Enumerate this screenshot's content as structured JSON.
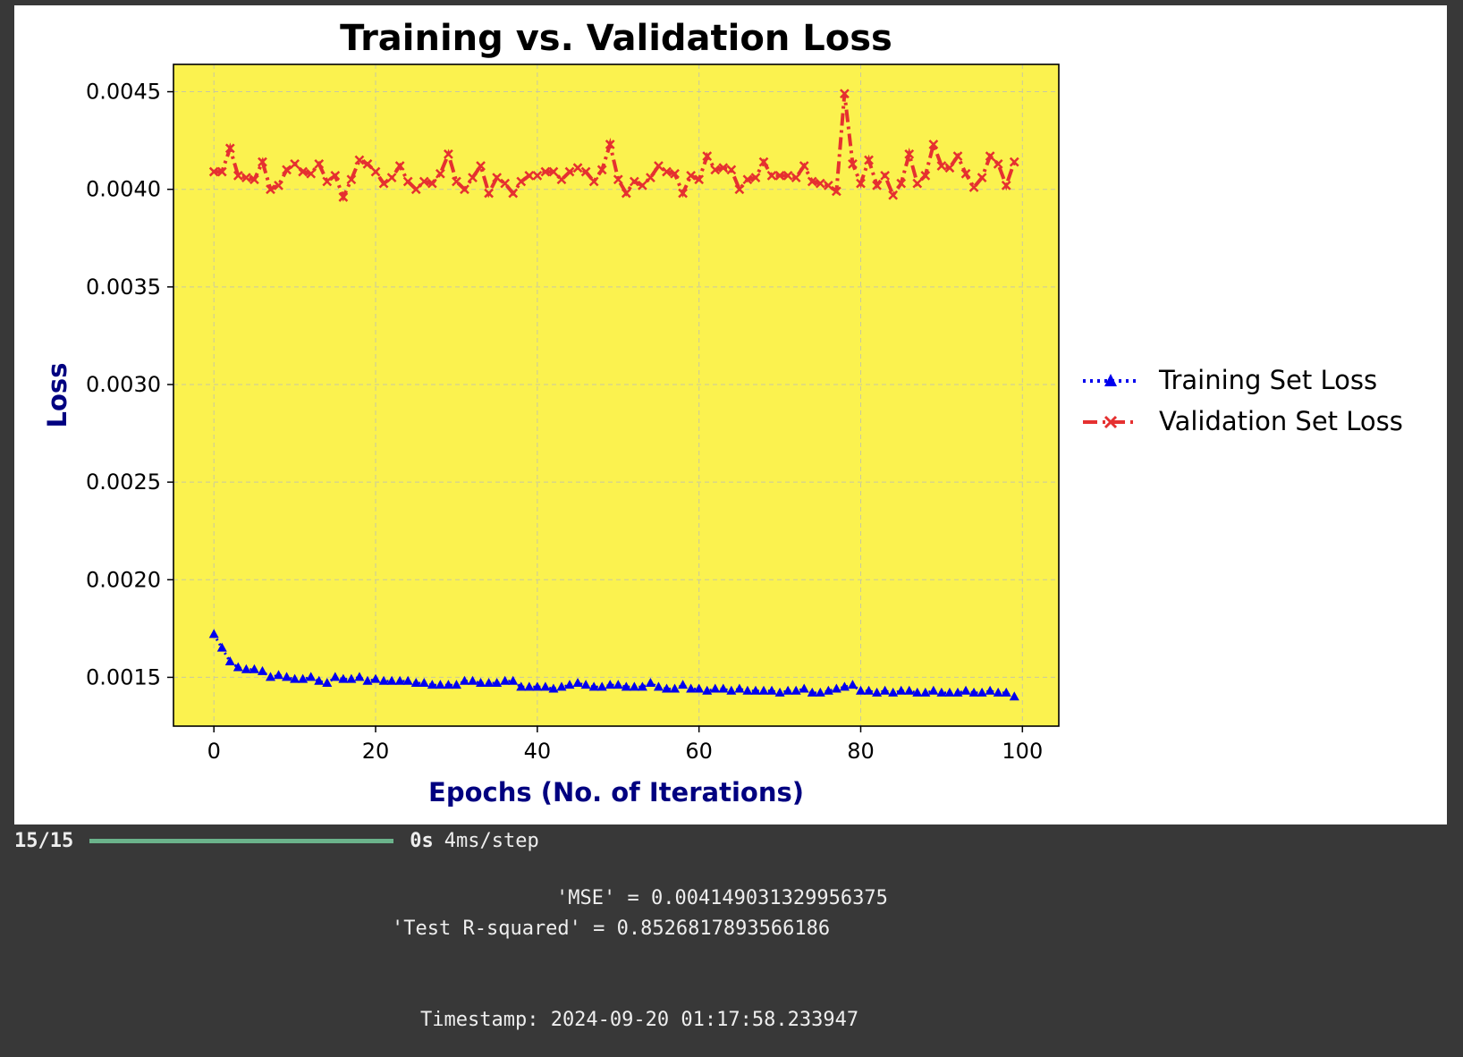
{
  "progress": {
    "count": "15/15",
    "time": "0s",
    "rate": "4ms/step"
  },
  "metrics": {
    "mse": "'MSE' = 0.004149031329956375",
    "r2": "'Test R-squared' = 0.8526817893566186",
    "timestamp": "Timestamp: 2024-09-20 01:17:58.233947"
  },
  "colors": {
    "background": "#383838",
    "plot_area": "#fbf24f",
    "training": "#0000ee",
    "validation": "#e53030",
    "axis_label": "#000080",
    "progress_bar": "#6bb38b"
  },
  "chart_data": {
    "type": "line",
    "title": "Training vs. Validation Loss",
    "xlabel": "Epochs (No. of Iterations)",
    "ylabel": "Loss",
    "xlim": [
      -5,
      104.5
    ],
    "ylim": [
      0.00125,
      0.00464
    ],
    "xticks": [
      0,
      20,
      40,
      60,
      80,
      100
    ],
    "xtick_labels": [
      "0",
      "20",
      "40",
      "60",
      "80",
      "100"
    ],
    "yticks": [
      0.0015,
      0.002,
      0.0025,
      0.003,
      0.0035,
      0.004,
      0.0045
    ],
    "ytick_labels": [
      "0.0015",
      "0.0020",
      "0.0025",
      "0.0030",
      "0.0035",
      "0.0040",
      "0.0045"
    ],
    "grid": true,
    "legend": "outside-right",
    "series": [
      {
        "name": "Training Set Loss",
        "color": "#0000ee",
        "line": "dotted",
        "marker": "triangle",
        "x": [
          0,
          1,
          2,
          3,
          4,
          5,
          6,
          7,
          8,
          9,
          10,
          11,
          12,
          13,
          14,
          15,
          16,
          17,
          18,
          19,
          20,
          21,
          22,
          23,
          24,
          25,
          26,
          27,
          28,
          29,
          30,
          31,
          32,
          33,
          34,
          35,
          36,
          37,
          38,
          39,
          40,
          41,
          42,
          43,
          44,
          45,
          46,
          47,
          48,
          49,
          50,
          51,
          52,
          53,
          54,
          55,
          56,
          57,
          58,
          59,
          60,
          61,
          62,
          63,
          64,
          65,
          66,
          67,
          68,
          69,
          70,
          71,
          72,
          73,
          74,
          75,
          76,
          77,
          78,
          79,
          80,
          81,
          82,
          83,
          84,
          85,
          86,
          87,
          88,
          89,
          90,
          91,
          92,
          93,
          94,
          95,
          96,
          97,
          98,
          99
        ],
        "y": [
          0.00172,
          0.00165,
          0.00158,
          0.00155,
          0.00154,
          0.00154,
          0.00153,
          0.0015,
          0.00151,
          0.0015,
          0.00149,
          0.00149,
          0.0015,
          0.00148,
          0.00147,
          0.0015,
          0.00149,
          0.00149,
          0.0015,
          0.00148,
          0.00149,
          0.00148,
          0.00148,
          0.00148,
          0.00148,
          0.00147,
          0.00147,
          0.00146,
          0.00146,
          0.00146,
          0.00146,
          0.00148,
          0.00148,
          0.00147,
          0.00147,
          0.00147,
          0.00148,
          0.00148,
          0.00145,
          0.00145,
          0.00145,
          0.00145,
          0.00144,
          0.00145,
          0.00146,
          0.00147,
          0.00146,
          0.00145,
          0.00145,
          0.00146,
          0.00146,
          0.00145,
          0.00145,
          0.00145,
          0.00147,
          0.00145,
          0.00144,
          0.00144,
          0.00146,
          0.00144,
          0.00144,
          0.00143,
          0.00144,
          0.00144,
          0.00143,
          0.00144,
          0.00143,
          0.00143,
          0.00143,
          0.00143,
          0.00142,
          0.00143,
          0.00143,
          0.00144,
          0.00142,
          0.00142,
          0.00143,
          0.00144,
          0.00145,
          0.00146,
          0.00143,
          0.00143,
          0.00142,
          0.00143,
          0.00142,
          0.00143,
          0.00143,
          0.00142,
          0.00142,
          0.00143,
          0.00142,
          0.00142,
          0.00142,
          0.00143,
          0.00142,
          0.00142,
          0.00143,
          0.00142,
          0.00142,
          0.0014
        ]
      },
      {
        "name": "Validation Set Loss",
        "color": "#e53030",
        "line": "dashdot",
        "marker": "x",
        "x": [
          0,
          1,
          2,
          3,
          4,
          5,
          6,
          7,
          8,
          9,
          10,
          11,
          12,
          13,
          14,
          15,
          16,
          17,
          18,
          19,
          20,
          21,
          22,
          23,
          24,
          25,
          26,
          27,
          28,
          29,
          30,
          31,
          32,
          33,
          34,
          35,
          36,
          37,
          38,
          39,
          40,
          41,
          42,
          43,
          44,
          45,
          46,
          47,
          48,
          49,
          50,
          51,
          52,
          53,
          54,
          55,
          56,
          57,
          58,
          59,
          60,
          61,
          62,
          63,
          64,
          65,
          66,
          67,
          68,
          69,
          70,
          71,
          72,
          73,
          74,
          75,
          76,
          77,
          78,
          79,
          80,
          81,
          82,
          83,
          84,
          85,
          86,
          87,
          88,
          89,
          90,
          91,
          92,
          93,
          94,
          95,
          96,
          97,
          98,
          99
        ],
        "y": [
          0.00409,
          0.00409,
          0.00421,
          0.00407,
          0.00406,
          0.00405,
          0.00414,
          0.004,
          0.00402,
          0.0041,
          0.00413,
          0.00409,
          0.00408,
          0.00413,
          0.00404,
          0.00407,
          0.00396,
          0.00405,
          0.00415,
          0.00413,
          0.00409,
          0.00403,
          0.00406,
          0.00412,
          0.00404,
          0.004,
          0.00404,
          0.00403,
          0.00408,
          0.00418,
          0.00404,
          0.004,
          0.00406,
          0.00412,
          0.00398,
          0.00406,
          0.00403,
          0.00398,
          0.00404,
          0.00407,
          0.00407,
          0.00409,
          0.00409,
          0.00405,
          0.00409,
          0.00411,
          0.00409,
          0.00404,
          0.0041,
          0.00423,
          0.00405,
          0.00398,
          0.00404,
          0.00402,
          0.00406,
          0.00412,
          0.00409,
          0.00408,
          0.00398,
          0.00407,
          0.00405,
          0.00417,
          0.0041,
          0.00411,
          0.0041,
          0.004,
          0.00405,
          0.00406,
          0.00414,
          0.00407,
          0.00407,
          0.00407,
          0.00406,
          0.00412,
          0.00404,
          0.00403,
          0.00402,
          0.00399,
          0.00449,
          0.00413,
          0.00403,
          0.00415,
          0.00402,
          0.00407,
          0.00397,
          0.00403,
          0.00418,
          0.00403,
          0.00407,
          0.00423,
          0.00412,
          0.00411,
          0.00417,
          0.00408,
          0.00401,
          0.00406,
          0.00417,
          0.00413,
          0.00402,
          0.00414
        ]
      }
    ]
  }
}
